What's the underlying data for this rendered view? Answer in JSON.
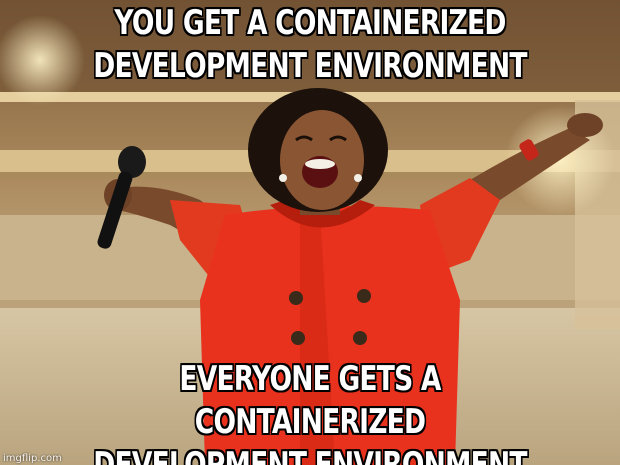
{
  "captions": {
    "top_line_1": "YOU GET A CONTAINERIZED",
    "top_line_2": "DEVELOPMENT ENVIRONMENT",
    "bottom_line_1": "EVERYONE GETS A CONTAINERIZED",
    "bottom_line_2": "DEVELOPMENT ENVIRONMENT"
  },
  "watermark": "imgflip.com",
  "colors": {
    "caption_text": "#ffffff",
    "caption_outline": "#000000",
    "dress": "#e8321e",
    "background_wall": "#c9b48a"
  }
}
